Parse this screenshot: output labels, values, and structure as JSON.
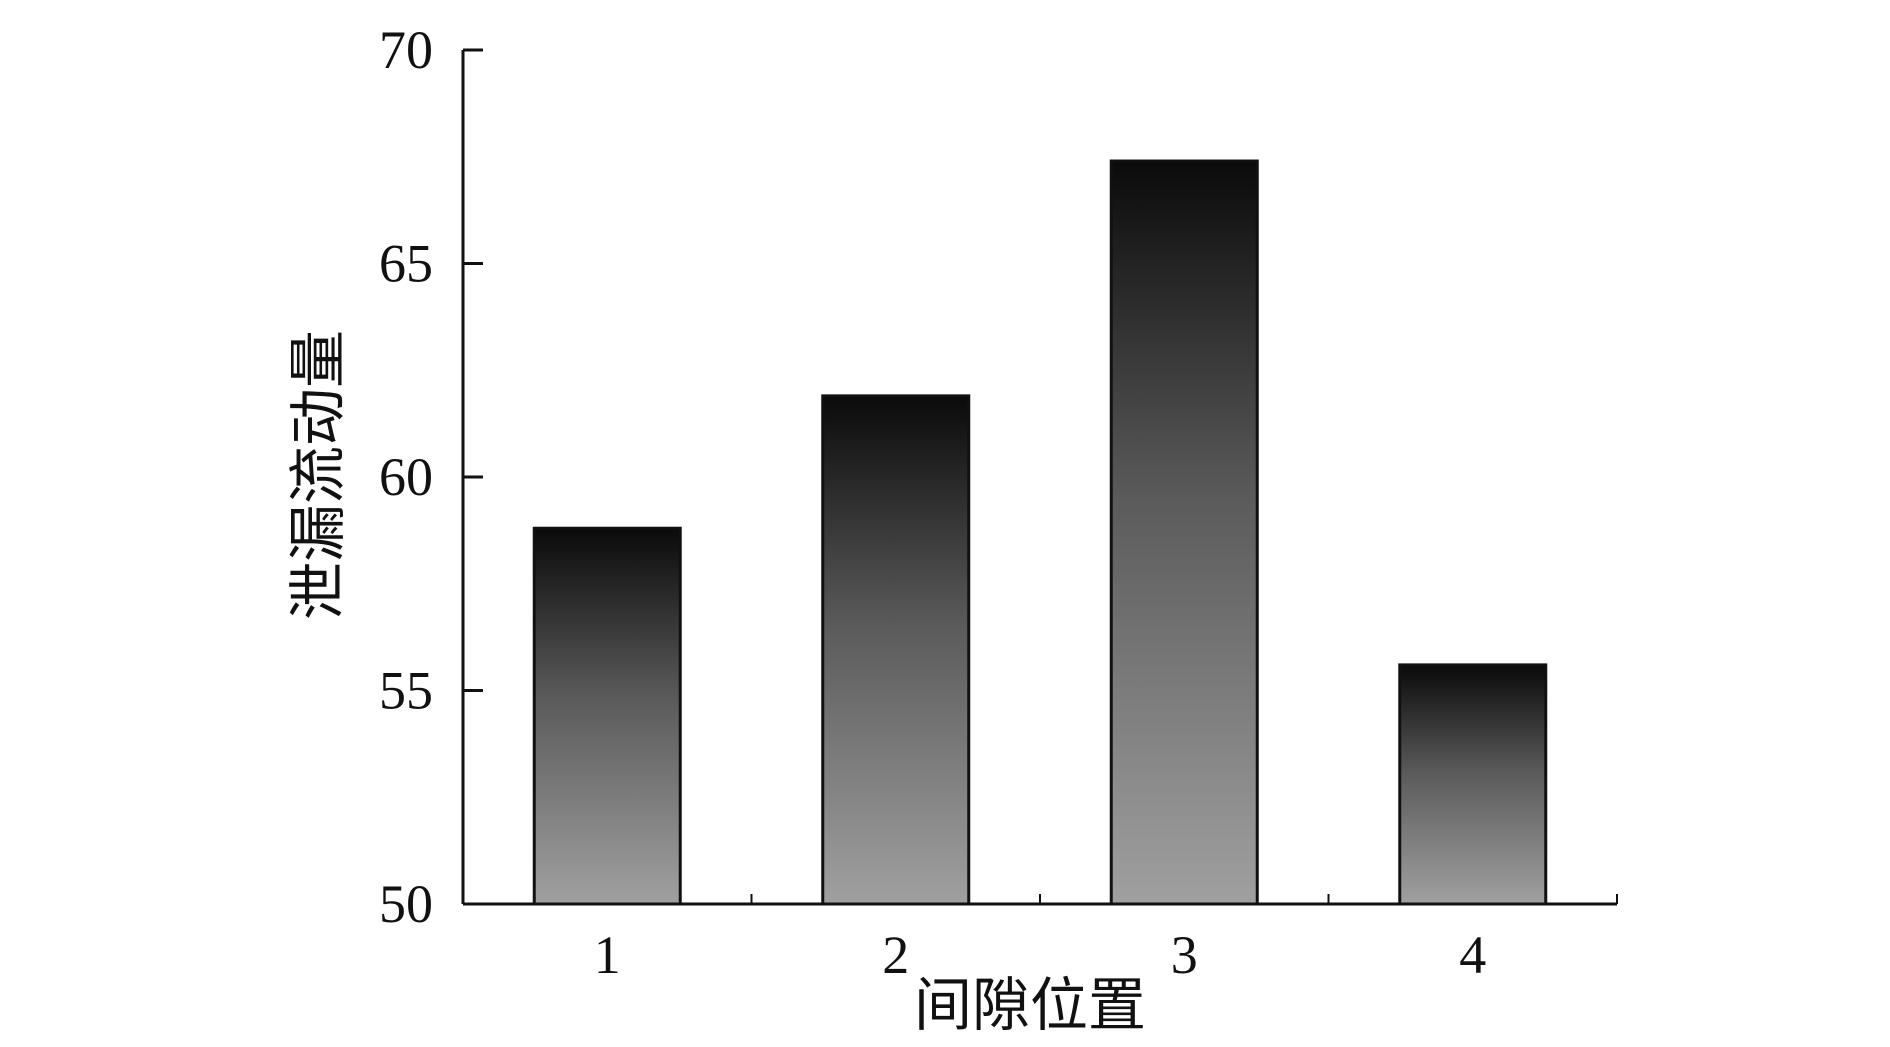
{
  "chart_data": {
    "type": "bar",
    "title": "",
    "xlabel": "间隙位置",
    "ylabel": "泄漏流动量",
    "categories": [
      "1",
      "2",
      "3",
      "4"
    ],
    "values": [
      58.8,
      61.9,
      67.4,
      55.6
    ],
    "ylim": [
      50,
      70
    ],
    "yticks": [
      "50",
      "55",
      "60",
      "65",
      "70"
    ],
    "grid": false,
    "legend": "none",
    "colors": {
      "bar_top": "#0a0a0a",
      "bar_bottom": "#a0a0a0",
      "axis": "#111111",
      "text": "#111111"
    }
  }
}
